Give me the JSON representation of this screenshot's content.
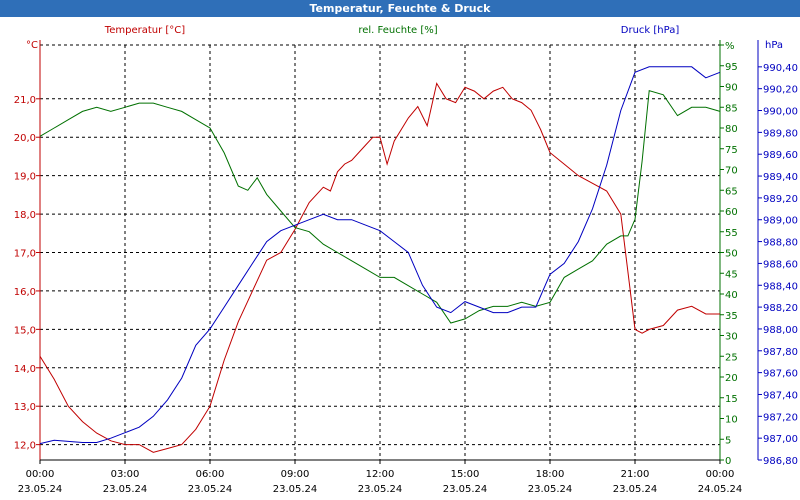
{
  "window": {
    "title": "Temperatur, Feuchte & Druck"
  },
  "colors": {
    "temperature": "#c00000",
    "humidity": "#007000",
    "pressure": "#0000c0",
    "axis": "#000000",
    "grid": "#000000"
  },
  "chart_data": {
    "type": "line",
    "title": "Temperatur, Feuchte & Druck",
    "x_label": "",
    "x_ticks": [
      {
        "time": "00:00",
        "date": "23.05.24"
      },
      {
        "time": "03:00",
        "date": "23.05.24"
      },
      {
        "time": "06:00",
        "date": "23.05.24"
      },
      {
        "time": "09:00",
        "date": "23.05.24"
      },
      {
        "time": "12:00",
        "date": "23.05.24"
      },
      {
        "time": "15:00",
        "date": "23.05.24"
      },
      {
        "time": "18:00",
        "date": "23.05.24"
      },
      {
        "time": "21:00",
        "date": "23.05.24"
      },
      {
        "time": "00:00",
        "date": "24.05.24"
      }
    ],
    "x_range": [
      "23.05.24 00:00",
      "24.05.24 00:00"
    ],
    "grid": true,
    "axes": {
      "temperature": {
        "label": "Temperatur [°C]",
        "unit": "°C",
        "side": "left",
        "range": [
          11.6,
          22.4
        ],
        "ticks": [
          "12,0",
          "13,0",
          "14,0",
          "15,0",
          "16,0",
          "17,0",
          "18,0",
          "19,0",
          "20,0",
          "21,0"
        ]
      },
      "humidity": {
        "label": "rel. Feuchte [%]",
        "unit": "%",
        "side": "right-inner",
        "range": [
          0,
          100
        ],
        "ticks": [
          "0",
          "5",
          "10",
          "15",
          "20",
          "25",
          "30",
          "35",
          "40",
          "45",
          "50",
          "55",
          "60",
          "65",
          "70",
          "75",
          "80",
          "85",
          "90",
          "95",
          "%"
        ]
      },
      "pressure": {
        "label": "Druck [hPa]",
        "unit": "hPa",
        "side": "right-outer",
        "range": [
          986.8,
          990.6
        ],
        "ticks": [
          "986,80",
          "987,00",
          "987,20",
          "987,40",
          "987,60",
          "987,80",
          "988,00",
          "988,20",
          "988,40",
          "988,60",
          "988,80",
          "989,00",
          "989,20",
          "989,40",
          "989,60",
          "989,80",
          "990,00",
          "990,20",
          "990,40"
        ]
      }
    },
    "series": [
      {
        "name": "Temperatur [°C]",
        "axis": "temperature",
        "x": [
          "23.05.24 00:00",
          "23.05.24 00:30",
          "23.05.24 01:00",
          "23.05.24 01:30",
          "23.05.24 02:00",
          "23.05.24 02:30",
          "23.05.24 03:00",
          "23.05.24 03:30",
          "23.05.24 04:00",
          "23.05.24 04:30",
          "23.05.24 05:00",
          "23.05.24 05:30",
          "23.05.24 06:00",
          "23.05.24 06:30",
          "23.05.24 07:00",
          "23.05.24 07:30",
          "23.05.24 08:00",
          "23.05.24 08:30",
          "23.05.24 09:00",
          "23.05.24 09:30",
          "23.05.24 10:00",
          "23.05.24 10:15",
          "23.05.24 10:30",
          "23.05.24 10:45",
          "23.05.24 11:00",
          "23.05.24 11:30",
          "23.05.24 11:45",
          "23.05.24 12:00",
          "23.05.24 12:15",
          "23.05.24 12:30",
          "23.05.24 13:00",
          "23.05.24 13:20",
          "23.05.24 13:40",
          "23.05.24 14:00",
          "23.05.24 14:20",
          "23.05.24 14:40",
          "23.05.24 15:00",
          "23.05.24 15:20",
          "23.05.24 15:40",
          "23.05.24 16:00",
          "23.05.24 16:20",
          "23.05.24 16:40",
          "23.05.24 17:00",
          "23.05.24 17:20",
          "23.05.24 17:40",
          "23.05.24 18:00",
          "23.05.24 18:30",
          "23.05.24 19:00",
          "23.05.24 19:30",
          "23.05.24 20:00",
          "23.05.24 20:30",
          "23.05.24 20:45",
          "23.05.24 21:00",
          "23.05.24 21:15",
          "23.05.24 21:30",
          "23.05.24 22:00",
          "23.05.24 22:30",
          "23.05.24 23:00",
          "23.05.24 23:30",
          "24.05.24 00:00"
        ],
        "values": [
          14.3,
          13.7,
          13.0,
          12.6,
          12.3,
          12.1,
          12.0,
          12.0,
          11.8,
          11.9,
          12.0,
          12.4,
          13.0,
          14.2,
          15.2,
          16.0,
          16.8,
          17.0,
          17.6,
          18.3,
          18.7,
          18.6,
          19.1,
          19.3,
          19.4,
          19.8,
          20.0,
          20.0,
          19.3,
          19.9,
          20.5,
          20.8,
          20.3,
          21.4,
          21.0,
          20.9,
          21.3,
          21.2,
          21.0,
          21.2,
          21.3,
          21.0,
          20.9,
          20.7,
          20.2,
          19.6,
          19.3,
          19.0,
          18.8,
          18.6,
          18.0,
          16.5,
          15.0,
          14.9,
          15.0,
          15.1,
          15.5,
          15.6,
          15.4,
          15.4
        ]
      },
      {
        "name": "rel. Feuchte [%]",
        "axis": "humidity",
        "x": [
          "23.05.24 00:00",
          "23.05.24 00:30",
          "23.05.24 01:00",
          "23.05.24 01:30",
          "23.05.24 02:00",
          "23.05.24 02:30",
          "23.05.24 03:00",
          "23.05.24 03:30",
          "23.05.24 04:00",
          "23.05.24 04:30",
          "23.05.24 05:00",
          "23.05.24 05:30",
          "23.05.24 06:00",
          "23.05.24 06:30",
          "23.05.24 07:00",
          "23.05.24 07:20",
          "23.05.24 07:40",
          "23.05.24 08:00",
          "23.05.24 08:30",
          "23.05.24 09:00",
          "23.05.24 09:30",
          "23.05.24 10:00",
          "23.05.24 10:30",
          "23.05.24 11:00",
          "23.05.24 11:30",
          "23.05.24 12:00",
          "23.05.24 12:30",
          "23.05.24 13:00",
          "23.05.24 13:30",
          "23.05.24 14:00",
          "23.05.24 14:30",
          "23.05.24 15:00",
          "23.05.24 15:30",
          "23.05.24 16:00",
          "23.05.24 16:30",
          "23.05.24 17:00",
          "23.05.24 17:30",
          "23.05.24 18:00",
          "23.05.24 18:30",
          "23.05.24 19:00",
          "23.05.24 19:30",
          "23.05.24 20:00",
          "23.05.24 20:30",
          "23.05.24 20:45",
          "23.05.24 21:00",
          "23.05.24 21:15",
          "23.05.24 21:30",
          "23.05.24 22:00",
          "23.05.24 22:30",
          "23.05.24 23:00",
          "23.05.24 23:30",
          "24.05.24 00:00"
        ],
        "values": [
          78,
          80,
          82,
          84,
          85,
          84,
          85,
          86,
          86,
          85,
          84,
          82,
          80,
          74,
          66,
          65,
          68,
          64,
          60,
          56,
          55,
          52,
          50,
          48,
          46,
          44,
          44,
          42,
          40,
          38,
          33,
          34,
          36,
          37,
          37,
          38,
          37,
          38,
          44,
          46,
          48,
          52,
          54,
          54,
          58,
          72,
          89,
          88,
          83,
          85,
          85,
          84
        ]
      },
      {
        "name": "Druck [hPa]",
        "axis": "pressure",
        "x": [
          "23.05.24 00:00",
          "23.05.24 00:30",
          "23.05.24 01:00",
          "23.05.24 01:30",
          "23.05.24 02:00",
          "23.05.24 02:30",
          "23.05.24 03:00",
          "23.05.24 03:30",
          "23.05.24 04:00",
          "23.05.24 04:30",
          "23.05.24 05:00",
          "23.05.24 05:30",
          "23.05.24 06:00",
          "23.05.24 06:30",
          "23.05.24 07:00",
          "23.05.24 07:30",
          "23.05.24 08:00",
          "23.05.24 08:30",
          "23.05.24 09:00",
          "23.05.24 09:30",
          "23.05.24 10:00",
          "23.05.24 10:30",
          "23.05.24 11:00",
          "23.05.24 11:30",
          "23.05.24 12:00",
          "23.05.24 12:30",
          "23.05.24 13:00",
          "23.05.24 13:30",
          "23.05.24 14:00",
          "23.05.24 14:30",
          "23.05.24 15:00",
          "23.05.24 15:30",
          "23.05.24 16:00",
          "23.05.24 16:30",
          "23.05.24 17:00",
          "23.05.24 17:30",
          "23.05.24 18:00",
          "23.05.24 18:30",
          "23.05.24 19:00",
          "23.05.24 19:30",
          "23.05.24 20:00",
          "23.05.24 20:30",
          "23.05.24 21:00",
          "23.05.24 21:30",
          "23.05.24 22:00",
          "23.05.24 22:30",
          "23.05.24 23:00",
          "23.05.24 23:30",
          "24.05.24 00:00"
        ],
        "values": [
          986.95,
          986.98,
          986.97,
          986.96,
          986.96,
          987.0,
          987.05,
          987.1,
          987.2,
          987.35,
          987.55,
          987.85,
          988.0,
          988.2,
          988.4,
          988.6,
          988.8,
          988.9,
          988.95,
          989.0,
          989.05,
          989.0,
          989.0,
          988.95,
          988.9,
          988.8,
          988.7,
          988.4,
          988.2,
          988.15,
          988.25,
          988.2,
          988.15,
          988.15,
          988.2,
          988.2,
          988.5,
          988.6,
          988.8,
          989.1,
          989.5,
          990.0,
          990.35,
          990.4,
          990.4,
          990.4,
          990.4,
          990.3,
          990.35
        ]
      }
    ]
  }
}
